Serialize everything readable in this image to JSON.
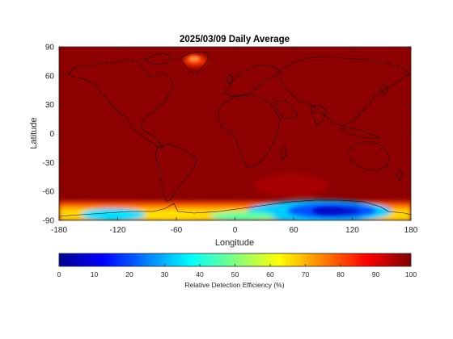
{
  "chart_data": {
    "type": "heatmap",
    "title": "2025/03/09 Daily Average",
    "xlabel": "Longitude",
    "ylabel": "Latitude",
    "xlim": [
      -180,
      180
    ],
    "ylim": [
      -90,
      90
    ],
    "xticks": [
      -180,
      -120,
      -60,
      0,
      60,
      120,
      180
    ],
    "yticks": [
      -90,
      -60,
      -30,
      0,
      30,
      60,
      90
    ],
    "colormap": "jet",
    "clim": [
      0,
      100
    ],
    "colorbar": {
      "label": "Relative Detection Efficiency (%)",
      "ticks": [
        0,
        10,
        20,
        30,
        40,
        50,
        60,
        70,
        80,
        90,
        100
      ],
      "placement": "bottom"
    },
    "background_value": 98,
    "features": [
      {
        "region": "Greenland icecap",
        "lon": -40,
        "lat": 75,
        "value": 86
      },
      {
        "region": "East Antarctica",
        "lon": 90,
        "lat": -83,
        "value": 12
      },
      {
        "region": "West Antarctica",
        "lon": -120,
        "lat": -82,
        "value": 30
      },
      {
        "region": "Antarctic margin",
        "lon": 0,
        "lat": -80,
        "value": 70
      }
    ],
    "coastlines": true,
    "grid": false
  }
}
